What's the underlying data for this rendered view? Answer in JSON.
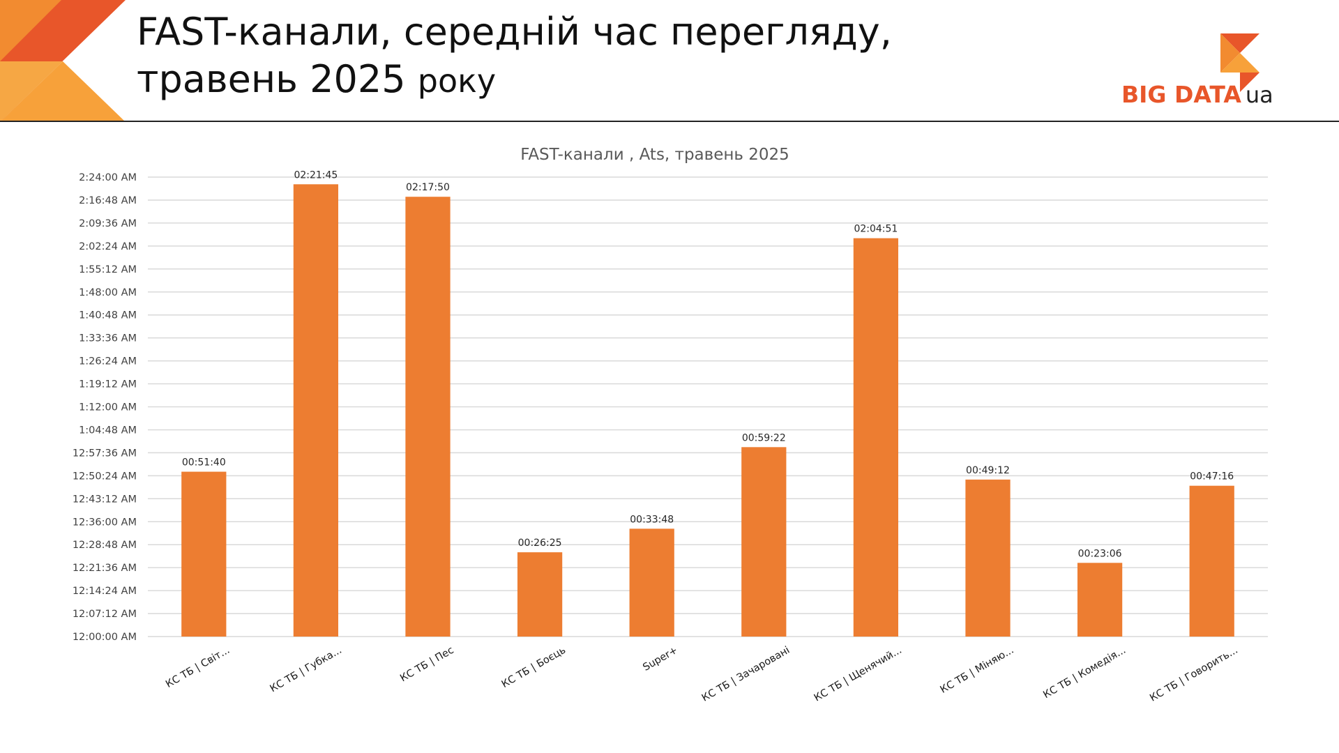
{
  "header": {
    "title_line1": "FAST-канали, середній час перегляду,",
    "title_line2_main": "травень 2025",
    "title_line2_small": "року"
  },
  "logo": {
    "text": "BIG DATA",
    "suffix": "ua"
  },
  "colors": {
    "accent": "#ed7d31",
    "logo_orange": "#e8562a",
    "corner_dark": "#e8562a",
    "corner_light": "#f7a13a",
    "grid": "#d9d9d9"
  },
  "chart_data": {
    "type": "bar",
    "title": "FAST-канали , Ats, травень 2025",
    "xlabel": "",
    "ylabel": "",
    "categories": [
      "КС ТБ | Світ...",
      "КС ТБ | Губка...",
      "КС ТБ | Пес",
      "КС ТБ | Боєць",
      "Super+",
      "КС ТБ | Зачаровані",
      "КС ТБ | Щенячий...",
      "КС ТБ | Міняю...",
      "КС ТБ | Комедія...",
      "КС ТБ | Говорить..."
    ],
    "values_seconds": [
      3100,
      8505,
      8270,
      1585,
      2028,
      3562,
      7491,
      2952,
      1386,
      2836
    ],
    "data_labels": [
      "00:51:40",
      "02:21:45",
      "02:17:50",
      "00:26:25",
      "00:33:48",
      "00:59:22",
      "02:04:51",
      "00:49:12",
      "00:23:06",
      "00:47:16"
    ],
    "ylim_seconds": [
      0,
      8640
    ],
    "ytick_step_seconds": 432,
    "y_tick_labels": [
      "12:00:00 AM",
      "12:07:12 AM",
      "12:14:24 AM",
      "12:21:36 AM",
      "12:28:48 AM",
      "12:36:00 AM",
      "12:43:12 AM",
      "12:50:24 AM",
      "12:57:36 AM",
      "1:04:48 AM",
      "1:12:00 AM",
      "1:19:12 AM",
      "1:26:24 AM",
      "1:33:36 AM",
      "1:40:48 AM",
      "1:48:00 AM",
      "1:55:12 AM",
      "2:02:24 AM",
      "2:09:36 AM",
      "2:16:48 AM",
      "2:24:00 AM"
    ],
    "grid": true,
    "legend": "none"
  }
}
